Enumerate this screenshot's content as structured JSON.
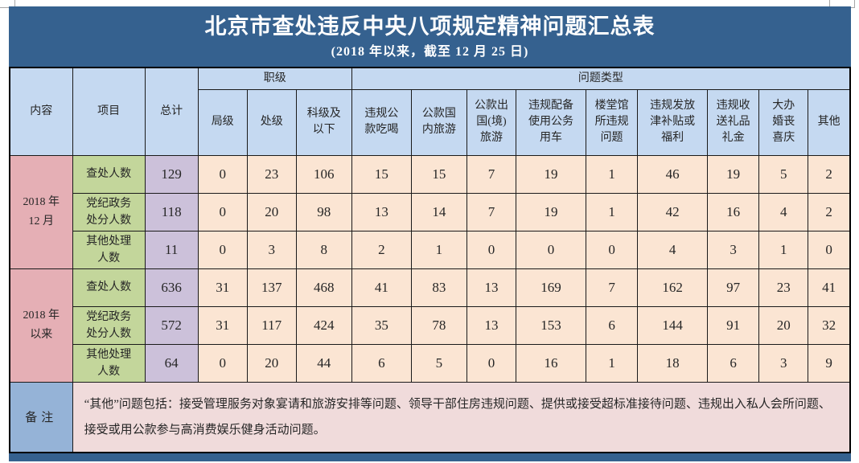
{
  "title": "北京市查处违反中央八项规定精神问题汇总表",
  "subtitle": "(2018 年以来，截至 12 月 25 日)",
  "colors": {
    "title_bar": "#35618F",
    "header_blue": "#C5D9F1",
    "period_pink": "#E5AFB5",
    "item_green": "#C3D69B",
    "total_purple": "#CCC1DA",
    "value_peach": "#FBE5D3",
    "note_label_blue": "#95B3D7",
    "note_body_pink": "#F0DBDB",
    "title_text": "#FFFFFF",
    "body_text": "#262626"
  },
  "header": {
    "content": "内容",
    "item": "项目",
    "total": "总计",
    "rank_group": "职级",
    "problem_group": "问题类型",
    "rank_cols": [
      "局级",
      "处级",
      "科级及\n以下"
    ],
    "problem_cols": [
      "违规公\n款吃喝",
      "公款国\n内旅游",
      "公款出\n国(境)\n旅游",
      "违规配备\n使用公务\n用车",
      "楼堂馆\n所违规\n问题",
      "违规发放\n津补贴或\n福利",
      "违规收\n送礼品\n礼金",
      "大办\n婚丧\n喜庆",
      "其他"
    ]
  },
  "sections": [
    {
      "period": "2018 年\n12 月",
      "rows": [
        {
          "label": "查处人数",
          "total": 129,
          "values": [
            0,
            23,
            106,
            15,
            15,
            7,
            19,
            1,
            46,
            19,
            5,
            2
          ]
        },
        {
          "label": "党纪政务\n处分人数",
          "total": 118,
          "values": [
            0,
            20,
            98,
            13,
            14,
            7,
            19,
            1,
            42,
            16,
            4,
            2
          ]
        },
        {
          "label": "其他处理\n人数",
          "total": 11,
          "values": [
            0,
            3,
            8,
            2,
            1,
            0,
            0,
            0,
            4,
            3,
            1,
            0
          ]
        }
      ]
    },
    {
      "period": "2018 年\n以来",
      "rows": [
        {
          "label": "查处人数",
          "total": 636,
          "values": [
            31,
            137,
            468,
            41,
            83,
            13,
            169,
            7,
            162,
            97,
            23,
            41
          ]
        },
        {
          "label": "党纪政务\n处分人数",
          "total": 572,
          "values": [
            31,
            117,
            424,
            35,
            78,
            13,
            153,
            6,
            144,
            91,
            20,
            32
          ]
        },
        {
          "label": "其他处理\n人数",
          "total": 64,
          "values": [
            0,
            20,
            44,
            6,
            5,
            0,
            16,
            1,
            18,
            6,
            3,
            9
          ]
        }
      ]
    }
  ],
  "note": {
    "label": "备注",
    "text": "“其他”问题包括：接受管理服务对象宴请和旅游安排等问题、领导干部住房违规问题、提供或接受超标准接待问题、违规出入私人会所问题、接受或用公款参与高消费娱乐健身活动问题。"
  },
  "chart_data": {
    "type": "table",
    "title": "北京市查处违反中央八项规定精神问题汇总表",
    "subtitle": "(2018 年以来，截至 12 月 25 日)",
    "column_groups": {
      "职级": [
        "局级",
        "处级",
        "科级及以下"
      ],
      "问题类型": [
        "违规公款吃喝",
        "公款国内旅游",
        "公款出国(境)旅游",
        "违规配备使用公务用车",
        "楼堂馆所违规问题",
        "违规发放津补贴或福利",
        "违规收送礼品礼金",
        "大办婚丧喜庆",
        "其他"
      ]
    },
    "columns": [
      "内容",
      "项目",
      "总计",
      "局级",
      "处级",
      "科级及以下",
      "违规公款吃喝",
      "公款国内旅游",
      "公款出国(境)旅游",
      "违规配备使用公务用车",
      "楼堂馆所违规问题",
      "违规发放津补贴或福利",
      "违规收送礼品礼金",
      "大办婚丧喜庆",
      "其他"
    ],
    "rows": [
      [
        "2018 年 12 月",
        "查处人数",
        129,
        0,
        23,
        106,
        15,
        15,
        7,
        19,
        1,
        46,
        19,
        5,
        2
      ],
      [
        "2018 年 12 月",
        "党纪政务处分人数",
        118,
        0,
        20,
        98,
        13,
        14,
        7,
        19,
        1,
        42,
        16,
        4,
        2
      ],
      [
        "2018 年 12 月",
        "其他处理人数",
        11,
        0,
        3,
        8,
        2,
        1,
        0,
        0,
        0,
        4,
        3,
        1,
        0
      ],
      [
        "2018 年以来",
        "查处人数",
        636,
        31,
        137,
        468,
        41,
        83,
        13,
        169,
        7,
        162,
        97,
        23,
        41
      ],
      [
        "2018 年以来",
        "党纪政务处分人数",
        572,
        31,
        117,
        424,
        35,
        78,
        13,
        153,
        6,
        144,
        91,
        20,
        32
      ],
      [
        "2018 年以来",
        "其他处理人数",
        64,
        0,
        20,
        44,
        6,
        5,
        0,
        16,
        1,
        18,
        6,
        3,
        9
      ]
    ],
    "note": "“其他”问题包括：接受管理服务对象宴请和旅游安排等问题、领导干部住房违规问题、提供或接受超标准接待问题、违规出入私人会所问题、接受或用公款参与高消费娱乐健身活动问题。"
  }
}
